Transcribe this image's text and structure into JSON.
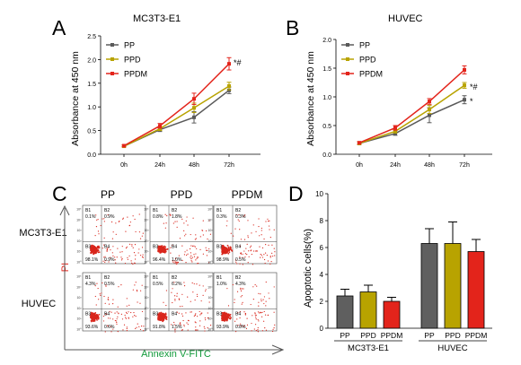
{
  "colors": {
    "PP": "#5a5a5a",
    "PPD": "#b8a300",
    "PPDM": "#e3241b",
    "flow_axis_label": "#119a3a",
    "pi_label": "#e3241b",
    "flow_dots": "#d9261c",
    "bar_PP": "#5f5f5f",
    "bar_PPD": "#b8a300",
    "bar_PPDM": "#e3241b"
  },
  "panels": {
    "A": {
      "letter": "A",
      "title": "MC3T3-E1"
    },
    "B": {
      "letter": "B",
      "title": "HUVEC"
    },
    "C": {
      "letter": "C"
    },
    "D": {
      "letter": "D"
    }
  },
  "chart_data": [
    {
      "panel": "A",
      "type": "line",
      "title": "MC3T3-E1",
      "ylabel": "Absorbance at 450 nm",
      "categories": [
        "0h",
        "24h",
        "48h",
        "72h"
      ],
      "yticks": [
        "0.0",
        "0.5",
        "1.0",
        "1.5",
        "2.0",
        "2.5"
      ],
      "ylim": [
        0,
        2.5
      ],
      "legend": [
        "PP",
        "PPD",
        "PPDM"
      ],
      "legend_position": "top-left",
      "series": [
        {
          "name": "PP",
          "values": [
            0.17,
            0.52,
            0.78,
            1.35
          ],
          "errors": [
            0.02,
            0.04,
            0.12,
            0.07
          ]
        },
        {
          "name": "PPD",
          "values": [
            0.17,
            0.54,
            0.98,
            1.44
          ],
          "errors": [
            0.02,
            0.04,
            0.1,
            0.08
          ]
        },
        {
          "name": "PPDM",
          "values": [
            0.18,
            0.6,
            1.17,
            1.91
          ],
          "errors": [
            0.02,
            0.05,
            0.12,
            0.13
          ]
        }
      ],
      "annotation": "*#"
    },
    {
      "panel": "B",
      "type": "line",
      "title": "HUVEC",
      "ylabel": "Absorbance at 450 nm",
      "categories": [
        "0h",
        "24h",
        "48h",
        "72h"
      ],
      "yticks": [
        "0.0",
        "0.5",
        "1.0",
        "1.5",
        "2.0"
      ],
      "ylim": [
        0,
        2.0
      ],
      "legend": [
        "PP",
        "PPD",
        "PPDM"
      ],
      "legend_position": "top-left",
      "series": [
        {
          "name": "PP",
          "values": [
            0.19,
            0.36,
            0.68,
            0.95
          ],
          "errors": [
            0.02,
            0.03,
            0.13,
            0.07
          ]
        },
        {
          "name": "PPD",
          "values": [
            0.19,
            0.4,
            0.78,
            1.2
          ],
          "errors": [
            0.02,
            0.03,
            0.07,
            0.05
          ]
        },
        {
          "name": "PPDM",
          "values": [
            0.2,
            0.46,
            0.92,
            1.47
          ],
          "errors": [
            0.02,
            0.04,
            0.05,
            0.07
          ]
        }
      ],
      "annotations": [
        {
          "series": "PPDM",
          "text": "*#"
        },
        {
          "series": "PPD",
          "text": "*"
        }
      ]
    },
    {
      "panel": "D",
      "type": "bar",
      "ylabel": "Apoptotic cells(%)",
      "yticks": [
        "0",
        "2",
        "4",
        "6",
        "8",
        "10"
      ],
      "ylim": [
        0,
        10
      ],
      "groups": [
        {
          "name": "MC3T3-E1",
          "categories": [
            "PP",
            "PPD",
            "PPDM"
          ],
          "values": [
            2.4,
            2.7,
            2.0
          ],
          "errors": [
            0.5,
            0.5,
            0.3
          ]
        },
        {
          "name": "HUVEC",
          "categories": [
            "PP",
            "PPD",
            "PPDM"
          ],
          "values": [
            6.3,
            6.3,
            5.7
          ],
          "errors": [
            1.1,
            1.6,
            0.9
          ]
        }
      ]
    }
  ],
  "flow": {
    "columns": [
      "PP",
      "PPD",
      "PPDM"
    ],
    "rows": [
      "MC3T3-E1",
      "HUVEC"
    ],
    "y_label": "PI",
    "x_label": "Annexin V-FITC",
    "axis_ticks": [
      "10⁵",
      "10⁴",
      "10³",
      "10²",
      "10¹",
      "10⁰"
    ],
    "plots": [
      {
        "q1": "0.1%",
        "q2": "0.9%",
        "q3": "98.1%",
        "q4": "0.9%"
      },
      {
        "q1": "0.8%",
        "q2": "1.8%",
        "q3": "96.4%",
        "q4": "1.0%"
      },
      {
        "q1": "0.3%",
        "q2": "0.3%",
        "q3": "98.9%",
        "q4": "0.5%"
      },
      {
        "q1": "4.3%",
        "q2": "0.5%",
        "q3": "93.6%",
        "q4": "0.6%"
      },
      {
        "q1": "0.5%",
        "q2": "6.2%",
        "q3": "91.8%",
        "q4": "1.5%"
      },
      {
        "q1": "1.0%",
        "q2": "4.3%",
        "q3": "93.9%",
        "q4": "0.8%"
      }
    ]
  }
}
